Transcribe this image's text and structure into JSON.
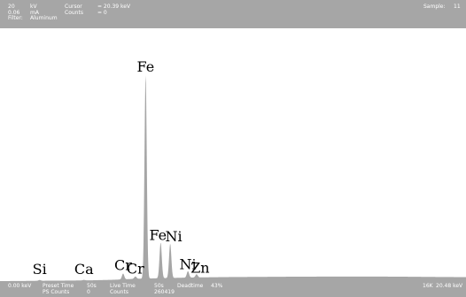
{
  "header": {
    "kv_value": "20",
    "kv_unit": "kV",
    "ma_value": "0.06",
    "ma_unit": "mA",
    "filter_label": "Filter:",
    "filter_value": "Aluminum",
    "cursor_label": "Cursor",
    "cursor_value": "= 20.39 keV",
    "counts_label": "Counts",
    "counts_value": "= 0",
    "sample_label": "Sample:",
    "sample_value": "11"
  },
  "footer": {
    "start_energy": "0.00 keV",
    "preset_time_label": "Preset Time",
    "preset_time_value": "50s",
    "ps_counts_label": "PS Counts",
    "ps_counts_value": "0",
    "live_time_label": "Live Time",
    "live_time_value": "50s",
    "counts_label": "Counts",
    "counts_value": "260419",
    "deadtime_label": "Deadtime",
    "deadtime_value": "43%",
    "full_scale": "16K",
    "end_energy": "20.48 keV"
  },
  "colors": {
    "bar": "#a6a6a6",
    "spectrum_fill": "#a6a6a6",
    "label": "#000000",
    "background": "#ffffff"
  },
  "chart_data": {
    "type": "area",
    "title": "",
    "xlabel": "",
    "ylabel": "",
    "xlim": [
      0.0,
      20.48
    ],
    "ylim": [
      0,
      16384
    ],
    "x_unit": "keV",
    "grid": false,
    "peaks": [
      {
        "label": "Si",
        "energy": 1.74,
        "counts": 60
      },
      {
        "label": "Ca",
        "energy": 3.69,
        "counts": 40
      },
      {
        "label": "Cr",
        "energy": 5.41,
        "counts": 450
      },
      {
        "label": "Cr",
        "energy": 5.95,
        "counts": 180
      },
      {
        "label": "Fe",
        "energy": 6.4,
        "counts": 15700
      },
      {
        "label": "Fe",
        "energy": 7.06,
        "counts": 2750
      },
      {
        "label": "Ni",
        "energy": 7.48,
        "counts": 2650
      },
      {
        "label": "Ni",
        "energy": 8.26,
        "counts": 500
      },
      {
        "label": "Zn",
        "energy": 8.64,
        "counts": 250
      }
    ],
    "continuum": {
      "x": [
        0.0,
        1.0,
        2.0,
        3.0,
        4.0,
        5.0,
        6.0,
        7.0,
        8.0,
        9.0,
        10.0,
        11.0,
        12.0,
        13.0,
        14.0,
        15.0,
        16.0,
        17.0,
        18.0,
        19.0,
        20.0,
        20.48
      ],
      "y": [
        0,
        10,
        30,
        40,
        60,
        100,
        180,
        220,
        260,
        290,
        310,
        320,
        330,
        340,
        345,
        350,
        350,
        345,
        335,
        320,
        310,
        305
      ]
    }
  }
}
